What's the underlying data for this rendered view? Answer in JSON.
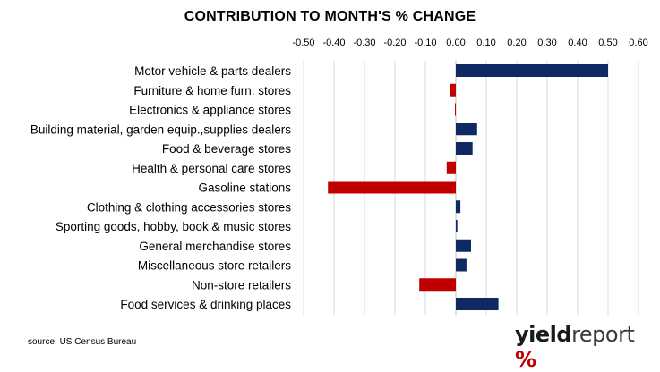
{
  "chart_data": {
    "type": "bar",
    "orientation": "horizontal",
    "title": "CONTRIBUTION TO MONTH'S % CHANGE",
    "categories": [
      "Motor vehicle & parts dealers",
      "Furniture & home furn. stores",
      "Electronics & appliance stores",
      "Building material, garden equip.,supplies dealers",
      "Food & beverage stores",
      "Health & personal care stores",
      "Gasoline stations",
      "Clothing & clothing accessories stores",
      "Sporting goods, hobby, book & music stores",
      "General merchandise stores",
      "Miscellaneous store retailers",
      "Non-store retailers",
      "Food services & drinking places"
    ],
    "values": [
      0.5,
      -0.02,
      -0.003,
      0.07,
      0.055,
      -0.03,
      -0.42,
      0.015,
      0.005,
      0.05,
      0.035,
      -0.12,
      0.14
    ],
    "xlim": [
      -0.5,
      0.6
    ],
    "xticks": [
      "-0.50",
      "-0.40",
      "-0.30",
      "-0.20",
      "-0.10",
      "0.00",
      "0.10",
      "0.20",
      "0.30",
      "0.40",
      "0.50",
      "0.60"
    ],
    "xtick_values": [
      -0.5,
      -0.4,
      -0.3,
      -0.2,
      -0.1,
      0.0,
      0.1,
      0.2,
      0.3,
      0.4,
      0.5,
      0.6
    ],
    "x_axis_position": "top",
    "grid": true,
    "legend": "none",
    "colors": {
      "positive": "#0f2a63",
      "negative": "#c00000",
      "grid": "#d9d9d9"
    }
  },
  "source_note": "source: US Census Bureau",
  "brand": {
    "part1": "yield",
    "part2": "report",
    "part3": " %"
  }
}
